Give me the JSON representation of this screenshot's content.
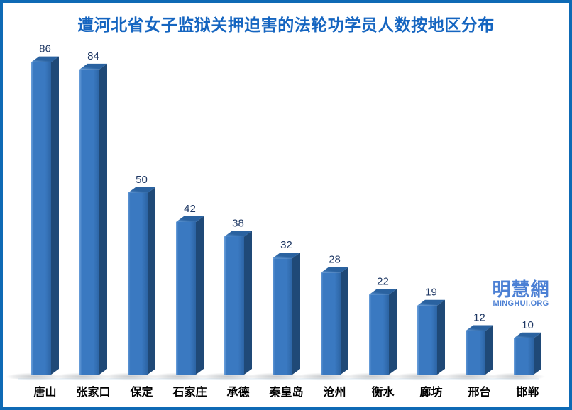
{
  "frame": {
    "border_color": "#0E6AB5",
    "background_color": "#FFFFFF"
  },
  "title": {
    "text": "遭河北省女子监狱关押迫害的法轮功学员人数按地区分布",
    "color": "#1565C0"
  },
  "watermark": {
    "line1": "明慧網",
    "line2": "MINGHUI.ORG",
    "color": "#4C80D4"
  },
  "chart_data": {
    "type": "bar",
    "style": "3d-oblique-bars",
    "title": "遭河北省女子监狱关押迫害的法轮功学员人数按地区分布",
    "categories": [
      "唐山",
      "张家口",
      "保定",
      "石家庄",
      "承德",
      "秦皇岛",
      "沧州",
      "衡水",
      "廊坊",
      "邢台",
      "邯郸"
    ],
    "values": [
      86,
      84,
      50,
      42,
      38,
      32,
      28,
      22,
      19,
      12,
      10
    ],
    "xlabel": "",
    "ylabel": "",
    "ylim": [
      0,
      90
    ],
    "grid": false,
    "legend": false,
    "value_labels_shown": true,
    "colors": {
      "bar_front_light": "#6CA0DB",
      "bar_front_main": "#3A79C1",
      "bar_front_dark": "#2C64A4",
      "bar_top_light": "#5E97D6",
      "bar_top_dark": "#2A62A0",
      "bar_side": "#1F4977",
      "shadow": "#8A9096",
      "axis_line": "#BCD7EE",
      "value_label": "#1F3864",
      "category_label": "#000000"
    }
  }
}
